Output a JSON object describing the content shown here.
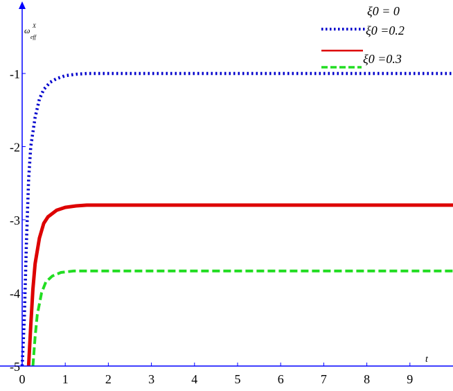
{
  "chart_data": {
    "type": "line",
    "title": "",
    "xlabel": "t",
    "ylabel": "ω",
    "ylabel_sup": "X",
    "ylabel_sub": "eff",
    "xlim": [
      0,
      10
    ],
    "ylim": [
      -5,
      -0.1
    ],
    "xticks": [
      0,
      1,
      2,
      3,
      4,
      5,
      6,
      7,
      8,
      9
    ],
    "xtick_labels": [
      "0",
      "1",
      "2",
      "3",
      "4",
      "5",
      "6",
      "7",
      "8",
      "9"
    ],
    "yticks": [
      -5,
      -4,
      -3,
      -2,
      -1
    ],
    "ytick_labels": [
      "-5",
      "-4",
      "-3",
      "-2",
      "-1"
    ],
    "grid": false,
    "legend_position": "top-right",
    "series": [
      {
        "name": "ξ0 = 0",
        "color": "#0000cc",
        "style": "dotted",
        "points": [
          [
            0.0,
            -5.0
          ],
          [
            0.05,
            -4.35
          ],
          [
            0.1,
            -3.3
          ],
          [
            0.15,
            -2.45
          ],
          [
            0.2,
            -2.0
          ],
          [
            0.3,
            -1.6
          ],
          [
            0.4,
            -1.35
          ],
          [
            0.5,
            -1.22
          ],
          [
            0.65,
            -1.12
          ],
          [
            0.8,
            -1.07
          ],
          [
            1.0,
            -1.03
          ],
          [
            1.25,
            -1.01
          ],
          [
            1.5,
            -1.0
          ],
          [
            2.0,
            -1.0
          ],
          [
            4.0,
            -1.0
          ],
          [
            7.0,
            -1.0
          ],
          [
            10.0,
            -1.0
          ]
        ]
      },
      {
        "name": "ξ0 =0.2",
        "color": "#dd0000",
        "style": "solid",
        "points": [
          [
            0.15,
            -5.0
          ],
          [
            0.2,
            -4.45
          ],
          [
            0.25,
            -3.95
          ],
          [
            0.3,
            -3.6
          ],
          [
            0.4,
            -3.25
          ],
          [
            0.5,
            -3.05
          ],
          [
            0.6,
            -2.96
          ],
          [
            0.8,
            -2.87
          ],
          [
            1.0,
            -2.83
          ],
          [
            1.25,
            -2.81
          ],
          [
            1.5,
            -2.8
          ],
          [
            2.0,
            -2.8
          ],
          [
            4.0,
            -2.8
          ],
          [
            7.0,
            -2.8
          ],
          [
            10.0,
            -2.8
          ]
        ]
      },
      {
        "name": "ξ0 =0.3",
        "color": "#22dd22",
        "style": "dashed",
        "points": [
          [
            0.25,
            -5.0
          ],
          [
            0.3,
            -4.6
          ],
          [
            0.35,
            -4.3
          ],
          [
            0.45,
            -4.0
          ],
          [
            0.55,
            -3.85
          ],
          [
            0.7,
            -3.77
          ],
          [
            0.9,
            -3.72
          ],
          [
            1.2,
            -3.7
          ],
          [
            1.6,
            -3.7
          ],
          [
            3.0,
            -3.7
          ],
          [
            6.0,
            -3.7
          ],
          [
            10.0,
            -3.7
          ]
        ]
      }
    ]
  }
}
